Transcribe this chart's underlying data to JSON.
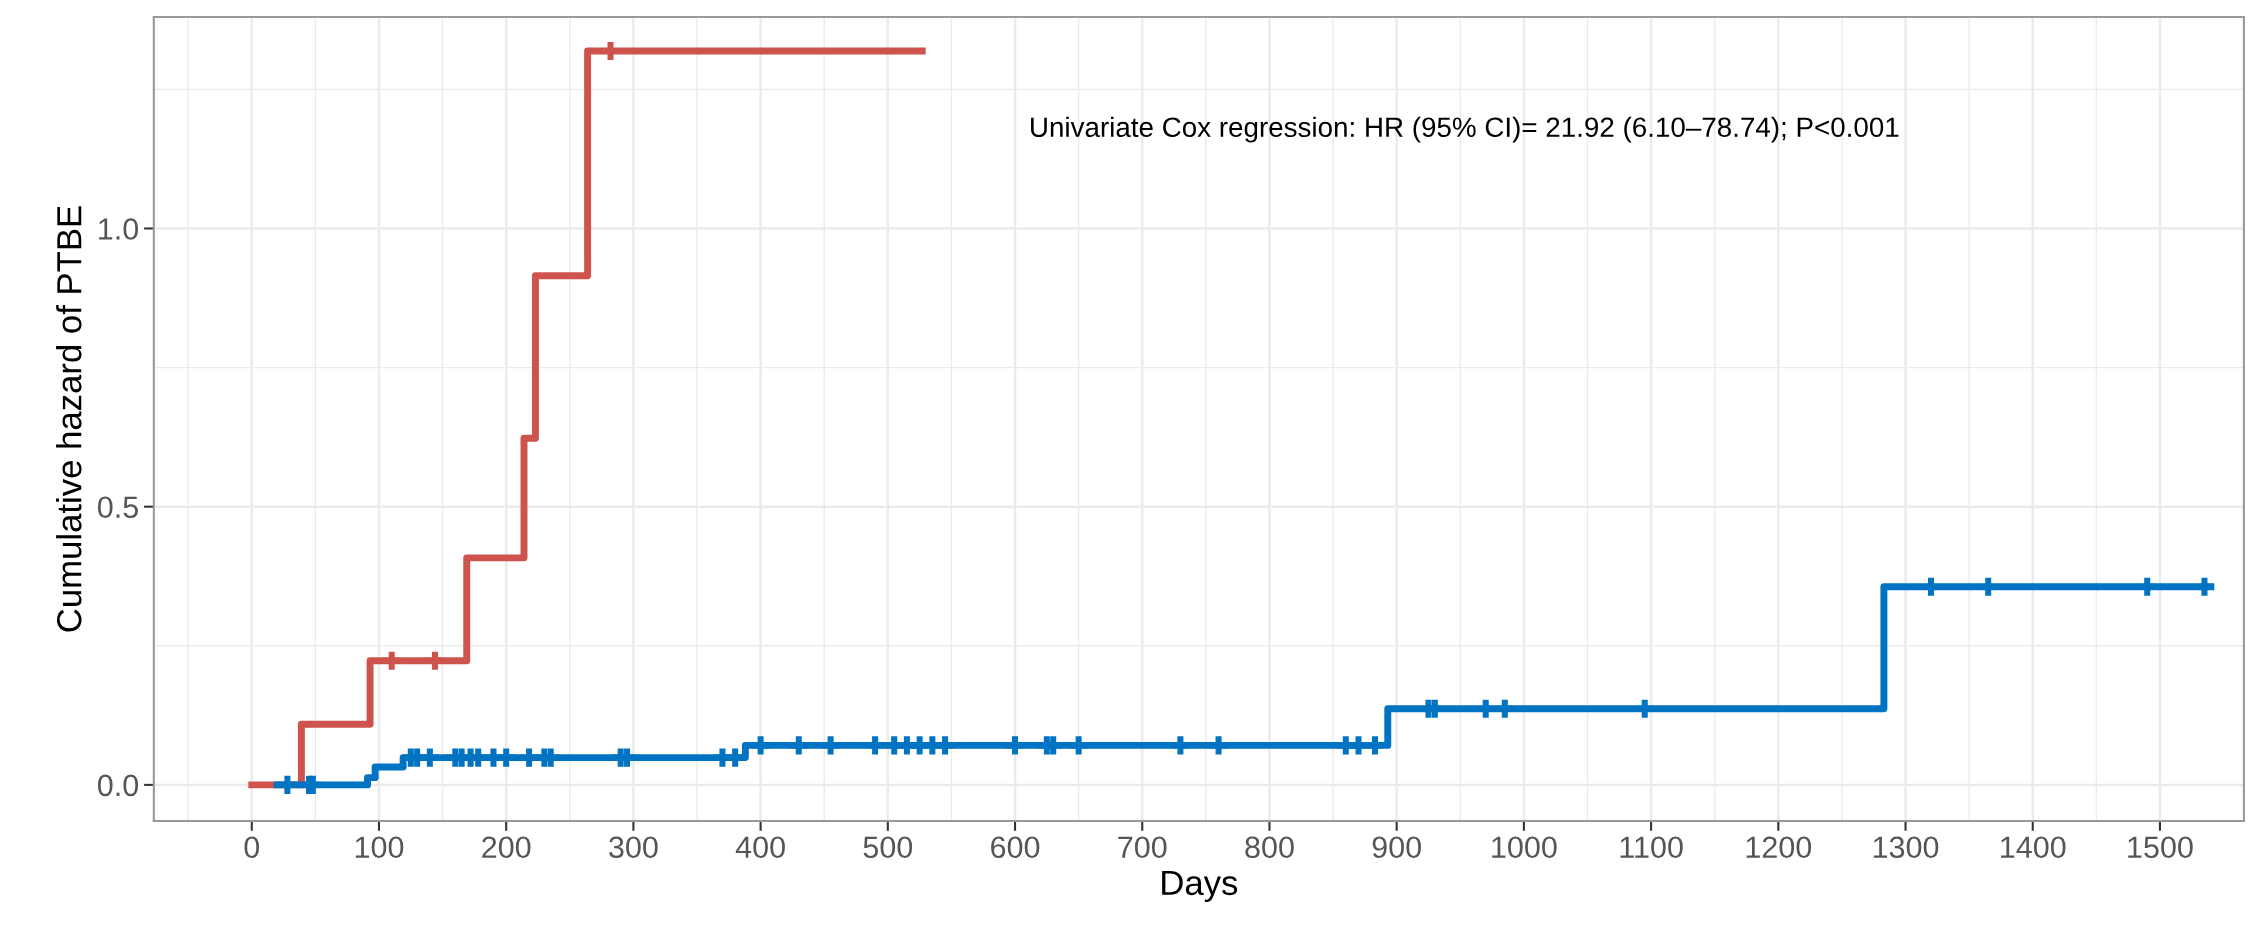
{
  "chart_data": {
    "type": "step",
    "xlabel": "Days",
    "ylabel": "Cumulative hazard of PTBE",
    "annotations": [
      "Univariate Cox regression: HR (95% CI)= 21.92 (6.10–78.74); P<0.001"
    ],
    "series": [
      {
        "color": "#cd534c",
        "x": [
          0,
          39,
          93,
          169,
          214,
          223,
          264,
          527
        ],
        "values": [
          0,
          0.109,
          0.223,
          0.408,
          0.623,
          0.915,
          1.319,
          1.319
        ]
      },
      {
        "color": "#0073c2",
        "x": [
          20,
          91,
          97,
          119,
          388,
          893,
          1283,
          1540
        ],
        "values": [
          0,
          0.013,
          0.032,
          0.049,
          0.071,
          0.137,
          0.356,
          0.356
        ]
      },
      {
        "type": "scatter",
        "marker": "cross",
        "color": "#cd534c",
        "x": [
          110,
          144,
          282
        ],
        "values": [
          0.223,
          0.223,
          1.319
        ]
      },
      {
        "type": "scatter",
        "marker": "cross",
        "color": "#0073c2",
        "x": [
          28,
          45,
          48,
          125,
          130,
          140,
          160,
          165,
          172,
          178,
          190,
          200,
          218,
          230,
          235,
          290,
          295,
          370,
          380,
          400,
          430,
          455,
          490,
          505,
          515,
          525,
          535,
          545,
          600,
          625,
          630,
          650,
          730,
          760,
          860,
          870,
          883,
          925,
          930,
          970,
          985,
          1095,
          1320,
          1365,
          1490,
          1535
        ],
        "values": [
          0,
          0,
          0,
          0.049,
          0.049,
          0.049,
          0.049,
          0.049,
          0.049,
          0.049,
          0.049,
          0.049,
          0.049,
          0.049,
          0.049,
          0.049,
          0.049,
          0.049,
          0.049,
          0.071,
          0.071,
          0.071,
          0.071,
          0.071,
          0.071,
          0.071,
          0.071,
          0.071,
          0.071,
          0.071,
          0.071,
          0.071,
          0.071,
          0.071,
          0.071,
          0.071,
          0.071,
          0.137,
          0.137,
          0.137,
          0.137,
          0.137,
          0.356,
          0.356,
          0.356,
          0.356
        ]
      }
    ],
    "xlim": [
      -77,
      1566
    ],
    "ylim": [
      -0.065,
      1.38
    ],
    "xticks": [
      0,
      100,
      200,
      300,
      400,
      500,
      600,
      700,
      800,
      900,
      1000,
      1100,
      1200,
      1300,
      1400,
      1500
    ],
    "yticks": [
      {
        "value": 0,
        "label": "0.0"
      },
      {
        "value": 0.5,
        "label": "0.5"
      },
      {
        "value": 1,
        "label": "1.0"
      }
    ],
    "grid": true
  }
}
